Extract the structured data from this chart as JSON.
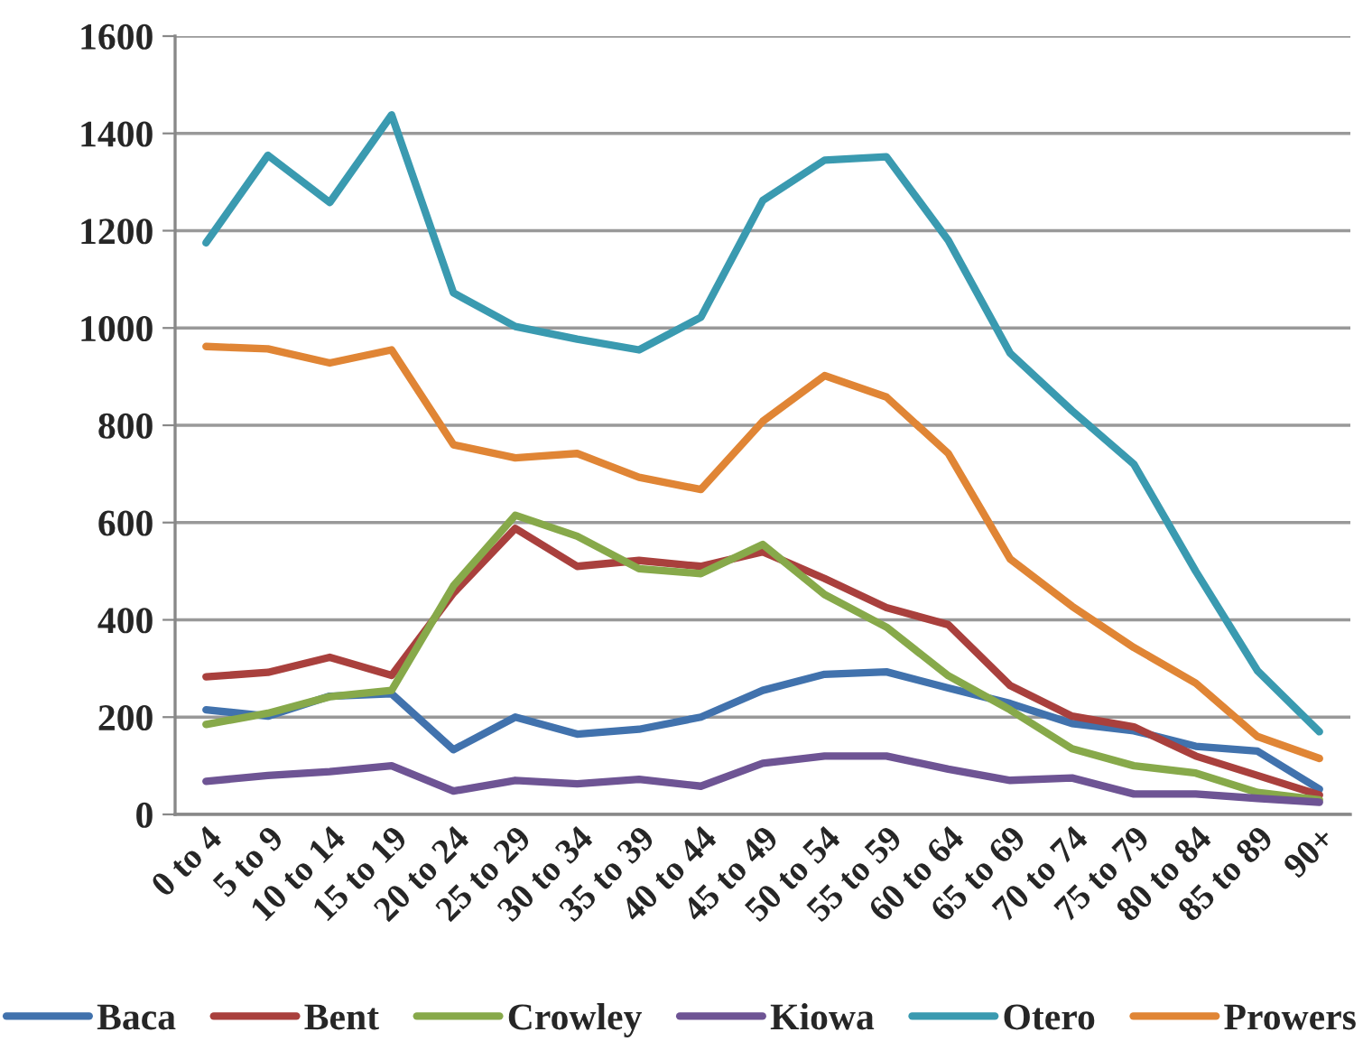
{
  "chart_data": {
    "type": "line",
    "categories": [
      "0 to 4",
      "5 to 9",
      "10 to 14",
      "15 to 19",
      "20 to 24",
      "25 to 29",
      "30 to 34",
      "35 to 39",
      "40 to 44",
      "45 to 49",
      "50 to 54",
      "55 to 59",
      "60 to 64",
      "65 to 69",
      "70 to 74",
      "75 to 79",
      "80 to 84",
      "85 to 89",
      "90+"
    ],
    "series": [
      {
        "name": "Baca",
        "color": "#4172ad",
        "values": [
          215,
          202,
          243,
          248,
          133,
          200,
          165,
          175,
          200,
          255,
          288,
          293,
          260,
          228,
          187,
          172,
          140,
          130,
          52
        ]
      },
      {
        "name": "Bent",
        "color": "#a9403d",
        "values": [
          283,
          292,
          323,
          286,
          455,
          588,
          510,
          522,
          510,
          540,
          485,
          425,
          390,
          265,
          202,
          180,
          120,
          80,
          40
        ]
      },
      {
        "name": "Crowley",
        "color": "#87a94a",
        "values": [
          185,
          208,
          242,
          255,
          470,
          615,
          572,
          505,
          495,
          555,
          452,
          385,
          285,
          215,
          135,
          100,
          85,
          45,
          30
        ]
      },
      {
        "name": "Kiowa",
        "color": "#6e5494",
        "values": [
          68,
          80,
          88,
          100,
          48,
          70,
          63,
          72,
          58,
          105,
          120,
          120,
          93,
          70,
          75,
          42,
          42,
          33,
          25
        ]
      },
      {
        "name": "Otero",
        "color": "#3a9ab0",
        "values": [
          1175,
          1355,
          1258,
          1438,
          1072,
          1003,
          977,
          955,
          1022,
          1262,
          1345,
          1352,
          1180,
          948,
          830,
          720,
          500,
          295,
          170
        ]
      },
      {
        "name": "Prowers",
        "color": "#e08535",
        "values": [
          962,
          957,
          928,
          955,
          760,
          733,
          742,
          693,
          668,
          808,
          902,
          858,
          742,
          525,
          428,
          343,
          270,
          160,
          115
        ]
      }
    ],
    "ylim": [
      0,
      1600
    ],
    "yticks": [
      0,
      200,
      400,
      600,
      800,
      1000,
      1200,
      1400,
      1600
    ],
    "grid": "y",
    "legend": "bottom",
    "marker": "none",
    "line_style": "solid"
  }
}
